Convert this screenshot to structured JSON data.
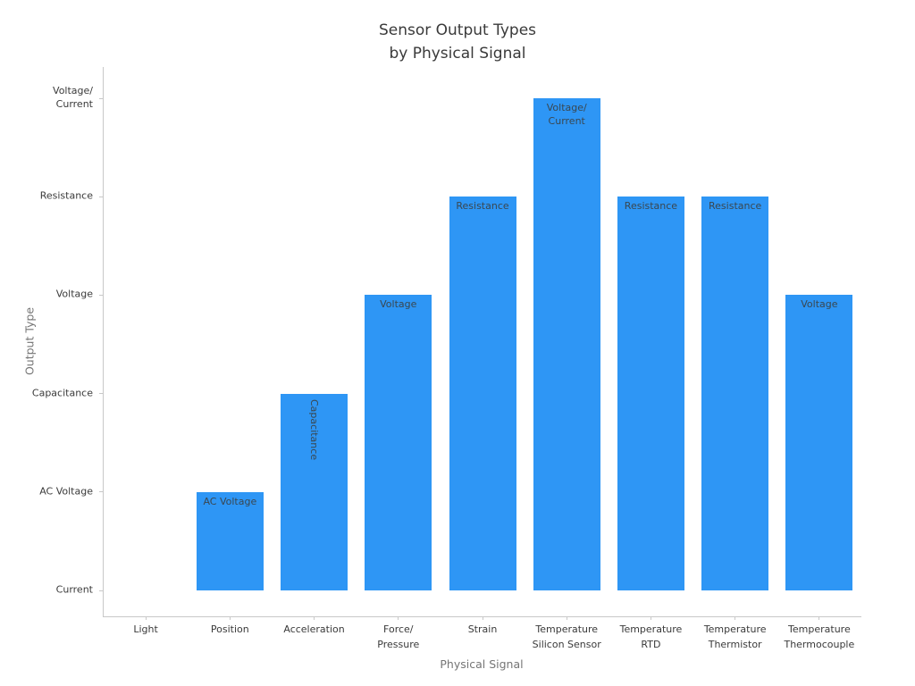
{
  "chart_data": {
    "type": "bar",
    "title": "Sensor Output Types\nby Physical Signal",
    "xlabel": "Physical Signal",
    "ylabel": "Output Type",
    "categories": [
      "Light",
      "Position",
      "Acceleration",
      "Force/\nPressure",
      "Strain",
      "Temperature\nSilicon Sensor",
      "Temperature\nRTD",
      "Temperature\nThermistor",
      "Temperature\nThermocouple"
    ],
    "values": [
      0,
      1,
      2,
      3,
      4,
      5,
      4,
      4,
      3
    ],
    "bar_labels": [
      "",
      "AC Voltage",
      "Capacitance",
      "Voltage",
      "Resistance",
      "Voltage/\nCurrent",
      "Resistance",
      "Resistance",
      "Voltage"
    ],
    "bar_label_rotated": [
      false,
      false,
      true,
      false,
      false,
      false,
      false,
      false,
      false
    ],
    "ytick_labels": [
      "Current",
      "AC Voltage",
      "Capacitance",
      "Voltage",
      "Resistance",
      "Voltage/\nCurrent"
    ],
    "ylim": [
      0,
      5.3
    ],
    "bar_color": "#2e96f5",
    "bar_label_color": "#3a4750",
    "grid": false,
    "legend_position": "none"
  }
}
